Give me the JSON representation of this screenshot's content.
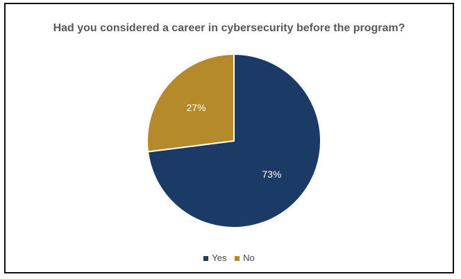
{
  "chart_data": {
    "type": "pie",
    "title": "Had you considered a career in cybersecurity before the program?",
    "categories": [
      "Yes",
      "No"
    ],
    "values": [
      73,
      27
    ],
    "data_labels": [
      "73%",
      "27%"
    ],
    "colors": [
      "#1b3a66",
      "#b58a2a"
    ],
    "label_color": "#ffffff",
    "legend": "bottom"
  }
}
